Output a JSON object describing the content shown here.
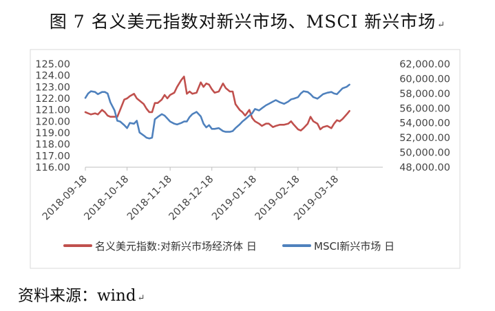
{
  "figure": {
    "title": "图 7  名义美元指数对新兴市场、MSCI 新兴市场",
    "source": "资料来源：wind"
  },
  "chart_data": {
    "type": "line",
    "title": "",
    "xlabel": "",
    "ylabel_left": "",
    "ylabel_right": "",
    "x_ticks": [
      "2018-09-18",
      "2018-10-18",
      "2018-11-18",
      "2018-12-18",
      "2019-01-18",
      "2019-02-18",
      "2019-03-18"
    ],
    "x_range": [
      "2018-09-18",
      "2019-04-20"
    ],
    "y_left_ticks": [
      "116.00",
      "117.00",
      "118.00",
      "119.00",
      "120.00",
      "121.00",
      "122.00",
      "123.00",
      "124.00",
      "125.00"
    ],
    "y_right_ticks": [
      "48,000.00",
      "50,000.00",
      "52,000.00",
      "54,000.00",
      "56,000.00",
      "58,000.00",
      "60,000.00",
      "62,000.00"
    ],
    "y_left_range": [
      116,
      125
    ],
    "y_right_range": [
      48000,
      62000
    ],
    "grid": false,
    "legend_position": "bottom",
    "colors": {
      "dollar": "#C0504D",
      "msci": "#4F81BD",
      "axis": "#BFBFBF"
    },
    "series": [
      {
        "name": "名义美元指数:对新兴市场经济体 日",
        "axis": "left",
        "color": "#C0504D",
        "points": [
          [
            "2018-09-18",
            120.8
          ],
          [
            "2018-09-20",
            120.7
          ],
          [
            "2018-09-22",
            120.6
          ],
          [
            "2018-09-25",
            120.7
          ],
          [
            "2018-09-27",
            120.6
          ],
          [
            "2018-09-30",
            121.0
          ],
          [
            "2018-10-02",
            120.8
          ],
          [
            "2018-10-04",
            120.5
          ],
          [
            "2018-10-06",
            120.4
          ],
          [
            "2018-10-09",
            120.4
          ],
          [
            "2018-10-11",
            120.4
          ],
          [
            "2018-10-13",
            121.0
          ],
          [
            "2018-10-16",
            121.9
          ],
          [
            "2018-10-18",
            122.0
          ],
          [
            "2018-10-20",
            122.2
          ],
          [
            "2018-10-23",
            122.4
          ],
          [
            "2018-10-25",
            122.0
          ],
          [
            "2018-10-27",
            121.8
          ],
          [
            "2018-10-30",
            121.5
          ],
          [
            "2018-11-01",
            121.1
          ],
          [
            "2018-11-03",
            120.8
          ],
          [
            "2018-11-05",
            120.8
          ],
          [
            "2018-11-07",
            121.6
          ],
          [
            "2018-11-09",
            121.6
          ],
          [
            "2018-11-12",
            121.9
          ],
          [
            "2018-11-14",
            122.3
          ],
          [
            "2018-11-16",
            122.0
          ],
          [
            "2018-11-18",
            122.3
          ],
          [
            "2018-11-21",
            122.5
          ],
          [
            "2018-11-23",
            123.0
          ],
          [
            "2018-11-26",
            123.6
          ],
          [
            "2018-11-28",
            123.9
          ],
          [
            "2018-11-30",
            122.4
          ],
          [
            "2018-12-02",
            122.6
          ],
          [
            "2018-12-04",
            122.4
          ],
          [
            "2018-12-07",
            122.5
          ],
          [
            "2018-12-10",
            123.4
          ],
          [
            "2018-12-12",
            123.0
          ],
          [
            "2018-12-14",
            123.3
          ],
          [
            "2018-12-16",
            123.2
          ],
          [
            "2018-12-18",
            122.8
          ],
          [
            "2018-12-20",
            122.5
          ],
          [
            "2018-12-23",
            122.6
          ],
          [
            "2018-12-26",
            123.3
          ],
          [
            "2018-12-28",
            122.9
          ],
          [
            "2018-12-31",
            122.6
          ],
          [
            "2019-01-02",
            122.6
          ],
          [
            "2019-01-04",
            121.5
          ],
          [
            "2019-01-07",
            121.0
          ],
          [
            "2019-01-09",
            120.8
          ],
          [
            "2019-01-11",
            120.5
          ],
          [
            "2019-01-14",
            121.0
          ],
          [
            "2019-01-16",
            120.3
          ],
          [
            "2019-01-18",
            120.0
          ],
          [
            "2019-01-21",
            119.8
          ],
          [
            "2019-01-23",
            119.6
          ],
          [
            "2019-01-26",
            119.8
          ],
          [
            "2019-01-28",
            119.8
          ],
          [
            "2019-01-31",
            119.5
          ],
          [
            "2019-02-02",
            119.6
          ],
          [
            "2019-02-05",
            119.7
          ],
          [
            "2019-02-08",
            119.7
          ],
          [
            "2019-02-11",
            119.8
          ],
          [
            "2019-02-13",
            120.0
          ],
          [
            "2019-02-15",
            119.7
          ],
          [
            "2019-02-18",
            119.3
          ],
          [
            "2019-02-20",
            119.2
          ],
          [
            "2019-02-22",
            119.4
          ],
          [
            "2019-02-25",
            119.8
          ],
          [
            "2019-02-27",
            120.4
          ],
          [
            "2019-03-01",
            120.0
          ],
          [
            "2019-03-04",
            119.8
          ],
          [
            "2019-03-06",
            119.3
          ],
          [
            "2019-03-08",
            119.5
          ],
          [
            "2019-03-11",
            119.6
          ],
          [
            "2019-03-14",
            119.4
          ],
          [
            "2019-03-16",
            119.8
          ],
          [
            "2019-03-18",
            120.1
          ],
          [
            "2019-03-20",
            120.0
          ],
          [
            "2019-03-22",
            120.2
          ],
          [
            "2019-03-25",
            120.6
          ],
          [
            "2019-03-27",
            120.9
          ]
        ]
      },
      {
        "name": "MSCI新兴市场 日",
        "axis": "right",
        "color": "#4F81BD",
        "points": [
          [
            "2018-09-18",
            57400
          ],
          [
            "2018-09-20",
            58000
          ],
          [
            "2018-09-22",
            58300
          ],
          [
            "2018-09-25",
            58200
          ],
          [
            "2018-09-27",
            57900
          ],
          [
            "2018-09-30",
            58200
          ],
          [
            "2018-10-02",
            58200
          ],
          [
            "2018-10-04",
            58000
          ],
          [
            "2018-10-06",
            56800
          ],
          [
            "2018-10-09",
            55700
          ],
          [
            "2018-10-11",
            54300
          ],
          [
            "2018-10-13",
            54200
          ],
          [
            "2018-10-16",
            53700
          ],
          [
            "2018-10-18",
            53300
          ],
          [
            "2018-10-20",
            54000
          ],
          [
            "2018-10-23",
            53900
          ],
          [
            "2018-10-25",
            54300
          ],
          [
            "2018-10-27",
            52700
          ],
          [
            "2018-10-30",
            52300
          ],
          [
            "2018-11-01",
            52000
          ],
          [
            "2018-11-03",
            51900
          ],
          [
            "2018-11-05",
            52000
          ],
          [
            "2018-11-07",
            54500
          ],
          [
            "2018-11-09",
            54800
          ],
          [
            "2018-11-12",
            55200
          ],
          [
            "2018-11-14",
            55000
          ],
          [
            "2018-11-16",
            54600
          ],
          [
            "2018-11-18",
            54200
          ],
          [
            "2018-11-21",
            53900
          ],
          [
            "2018-11-23",
            53800
          ],
          [
            "2018-11-26",
            54000
          ],
          [
            "2018-11-28",
            54200
          ],
          [
            "2018-11-30",
            54200
          ],
          [
            "2018-12-02",
            54800
          ],
          [
            "2018-12-04",
            55200
          ],
          [
            "2018-12-07",
            55500
          ],
          [
            "2018-12-10",
            54900
          ],
          [
            "2018-12-12",
            53900
          ],
          [
            "2018-12-14",
            53400
          ],
          [
            "2018-12-16",
            53700
          ],
          [
            "2018-12-18",
            53200
          ],
          [
            "2018-12-20",
            53200
          ],
          [
            "2018-12-23",
            53300
          ],
          [
            "2018-12-26",
            52900
          ],
          [
            "2018-12-28",
            52800
          ],
          [
            "2018-12-31",
            52800
          ],
          [
            "2019-01-02",
            52900
          ],
          [
            "2019-01-04",
            53300
          ],
          [
            "2019-01-07",
            53800
          ],
          [
            "2019-01-09",
            54200
          ],
          [
            "2019-01-11",
            54500
          ],
          [
            "2019-01-14",
            55000
          ],
          [
            "2019-01-16",
            55300
          ],
          [
            "2019-01-18",
            55900
          ],
          [
            "2019-01-21",
            55700
          ],
          [
            "2019-01-23",
            56000
          ],
          [
            "2019-01-26",
            56400
          ],
          [
            "2019-01-28",
            56600
          ],
          [
            "2019-01-31",
            56900
          ],
          [
            "2019-02-02",
            57100
          ],
          [
            "2019-02-05",
            56800
          ],
          [
            "2019-02-08",
            56600
          ],
          [
            "2019-02-11",
            56900
          ],
          [
            "2019-02-13",
            57200
          ],
          [
            "2019-02-15",
            57300
          ],
          [
            "2019-02-18",
            57500
          ],
          [
            "2019-02-20",
            58000
          ],
          [
            "2019-02-22",
            58300
          ],
          [
            "2019-02-25",
            58200
          ],
          [
            "2019-02-27",
            57900
          ],
          [
            "2019-03-01",
            57500
          ],
          [
            "2019-03-04",
            57300
          ],
          [
            "2019-03-06",
            57600
          ],
          [
            "2019-03-08",
            57900
          ],
          [
            "2019-03-11",
            58100
          ],
          [
            "2019-03-14",
            58200
          ],
          [
            "2019-03-16",
            58000
          ],
          [
            "2019-03-18",
            57900
          ],
          [
            "2019-03-20",
            58300
          ],
          [
            "2019-03-22",
            58700
          ],
          [
            "2019-03-25",
            58900
          ],
          [
            "2019-03-27",
            59200
          ]
        ]
      }
    ]
  }
}
